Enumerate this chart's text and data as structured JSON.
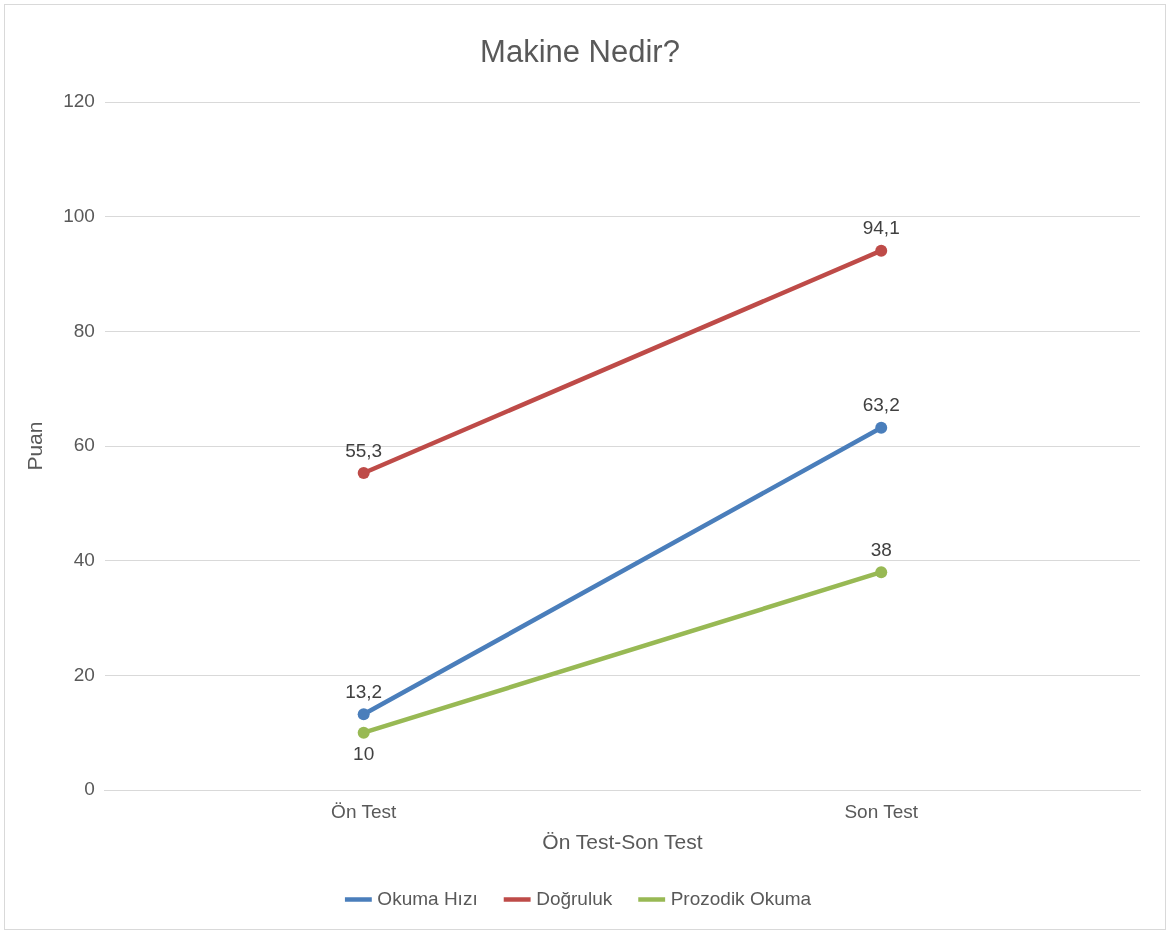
{
  "chart_data": {
    "type": "line",
    "title": "Makine Nedir?",
    "xlabel": "Ön Test-Son Test",
    "ylabel": "Puan",
    "categories": [
      "Ön Test",
      "Son Test"
    ],
    "series": [
      {
        "name": "Okuma Hızı",
        "color": "#4a7ebb",
        "values": [
          13.2,
          63.2
        ],
        "value_labels": [
          "13,2",
          "63,2"
        ]
      },
      {
        "name": "Doğruluk",
        "color": "#be4b48",
        "values": [
          55.3,
          94.1
        ],
        "value_labels": [
          "55,3",
          "94,1"
        ]
      },
      {
        "name": "Prozodik Okuma",
        "color": "#98b954",
        "values": [
          10,
          38
        ],
        "value_labels": [
          "10",
          "38"
        ]
      }
    ],
    "ylim": [
      0,
      120
    ],
    "yticks": [
      0,
      20,
      40,
      60,
      80,
      100,
      120
    ],
    "grid": "y",
    "legend": "bottom",
    "marker": "circle",
    "line_style": "solid"
  }
}
